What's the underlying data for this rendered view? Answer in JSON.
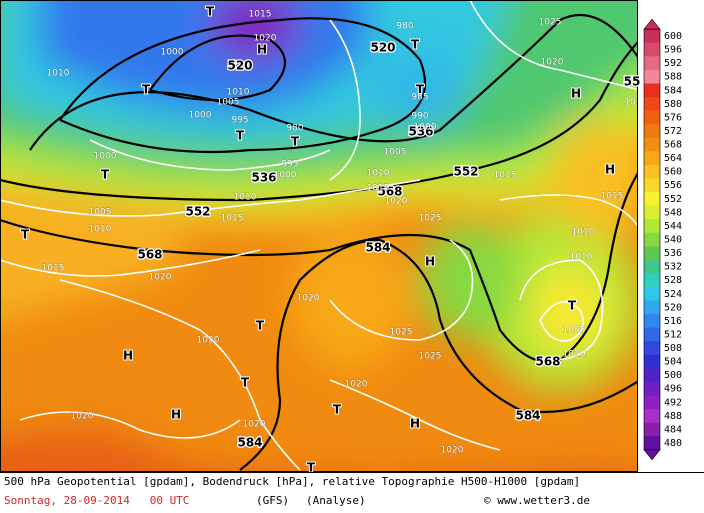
{
  "map": {
    "labels": [
      "H",
      "T",
      "1015",
      "1020",
      "520",
      "1000",
      "1010",
      "1005",
      "T",
      "1000",
      "995",
      "T",
      "980",
      "T",
      "536",
      "995",
      "1000",
      "T",
      "1000",
      "552",
      "1005",
      "1010",
      "1015",
      "1010",
      "T",
      "1015",
      "568",
      "1020",
      "1020",
      "1020",
      "T",
      "H",
      "T",
      "1020",
      "1025",
      "1025",
      "H",
      "584",
      "1010",
      "568",
      "1015",
      "1020",
      "1025",
      "1005",
      "520",
      "T",
      "980",
      "T",
      "985",
      "990",
      "536",
      "1000",
      "552",
      "1015",
      "1025",
      "1020",
      "H",
      "H",
      "1015",
      "1010",
      "1010",
      "T",
      "1005",
      "1010",
      "568",
      "584",
      "H",
      "1020",
      "T",
      "1020",
      "584",
      "1020",
      "H",
      "T",
      "1010",
      "55",
      "10"
    ],
    "legend": {
      "levels": [
        600,
        596,
        592,
        588,
        584,
        580,
        576,
        572,
        568,
        564,
        560,
        556,
        552,
        548,
        544,
        540,
        536,
        532,
        528,
        524,
        520,
        516,
        512,
        508,
        504,
        500,
        496,
        492,
        488,
        484,
        480
      ],
      "colors": [
        "#c8305a",
        "#d84a70",
        "#e86888",
        "#f08898",
        "#e83020",
        "#f04818",
        "#f06010",
        "#f07810",
        "#f09010",
        "#f8a818",
        "#f8c020",
        "#f8d828",
        "#f8f030",
        "#d8f030",
        "#b0e838",
        "#88d840",
        "#60c850",
        "#40c888",
        "#30d0c0",
        "#30c8e8",
        "#30a8f0",
        "#3088f0",
        "#3068e8",
        "#3048e0",
        "#3030d0",
        "#5020c8",
        "#7020c0",
        "#9020c0",
        "#a830c8",
        "#8820a8",
        "#6010a0"
      ]
    }
  },
  "footer": {
    "description": "500 hPa Geopotential [gpdam], Bodendruck [hPa], relative Topographie H500-H1000 [gpdam]",
    "date": "Sonntag, 28-09-2014   00 UTC",
    "model": "(GFS)",
    "run": "(Analyse)",
    "credit": "© www.wetter3.de"
  }
}
